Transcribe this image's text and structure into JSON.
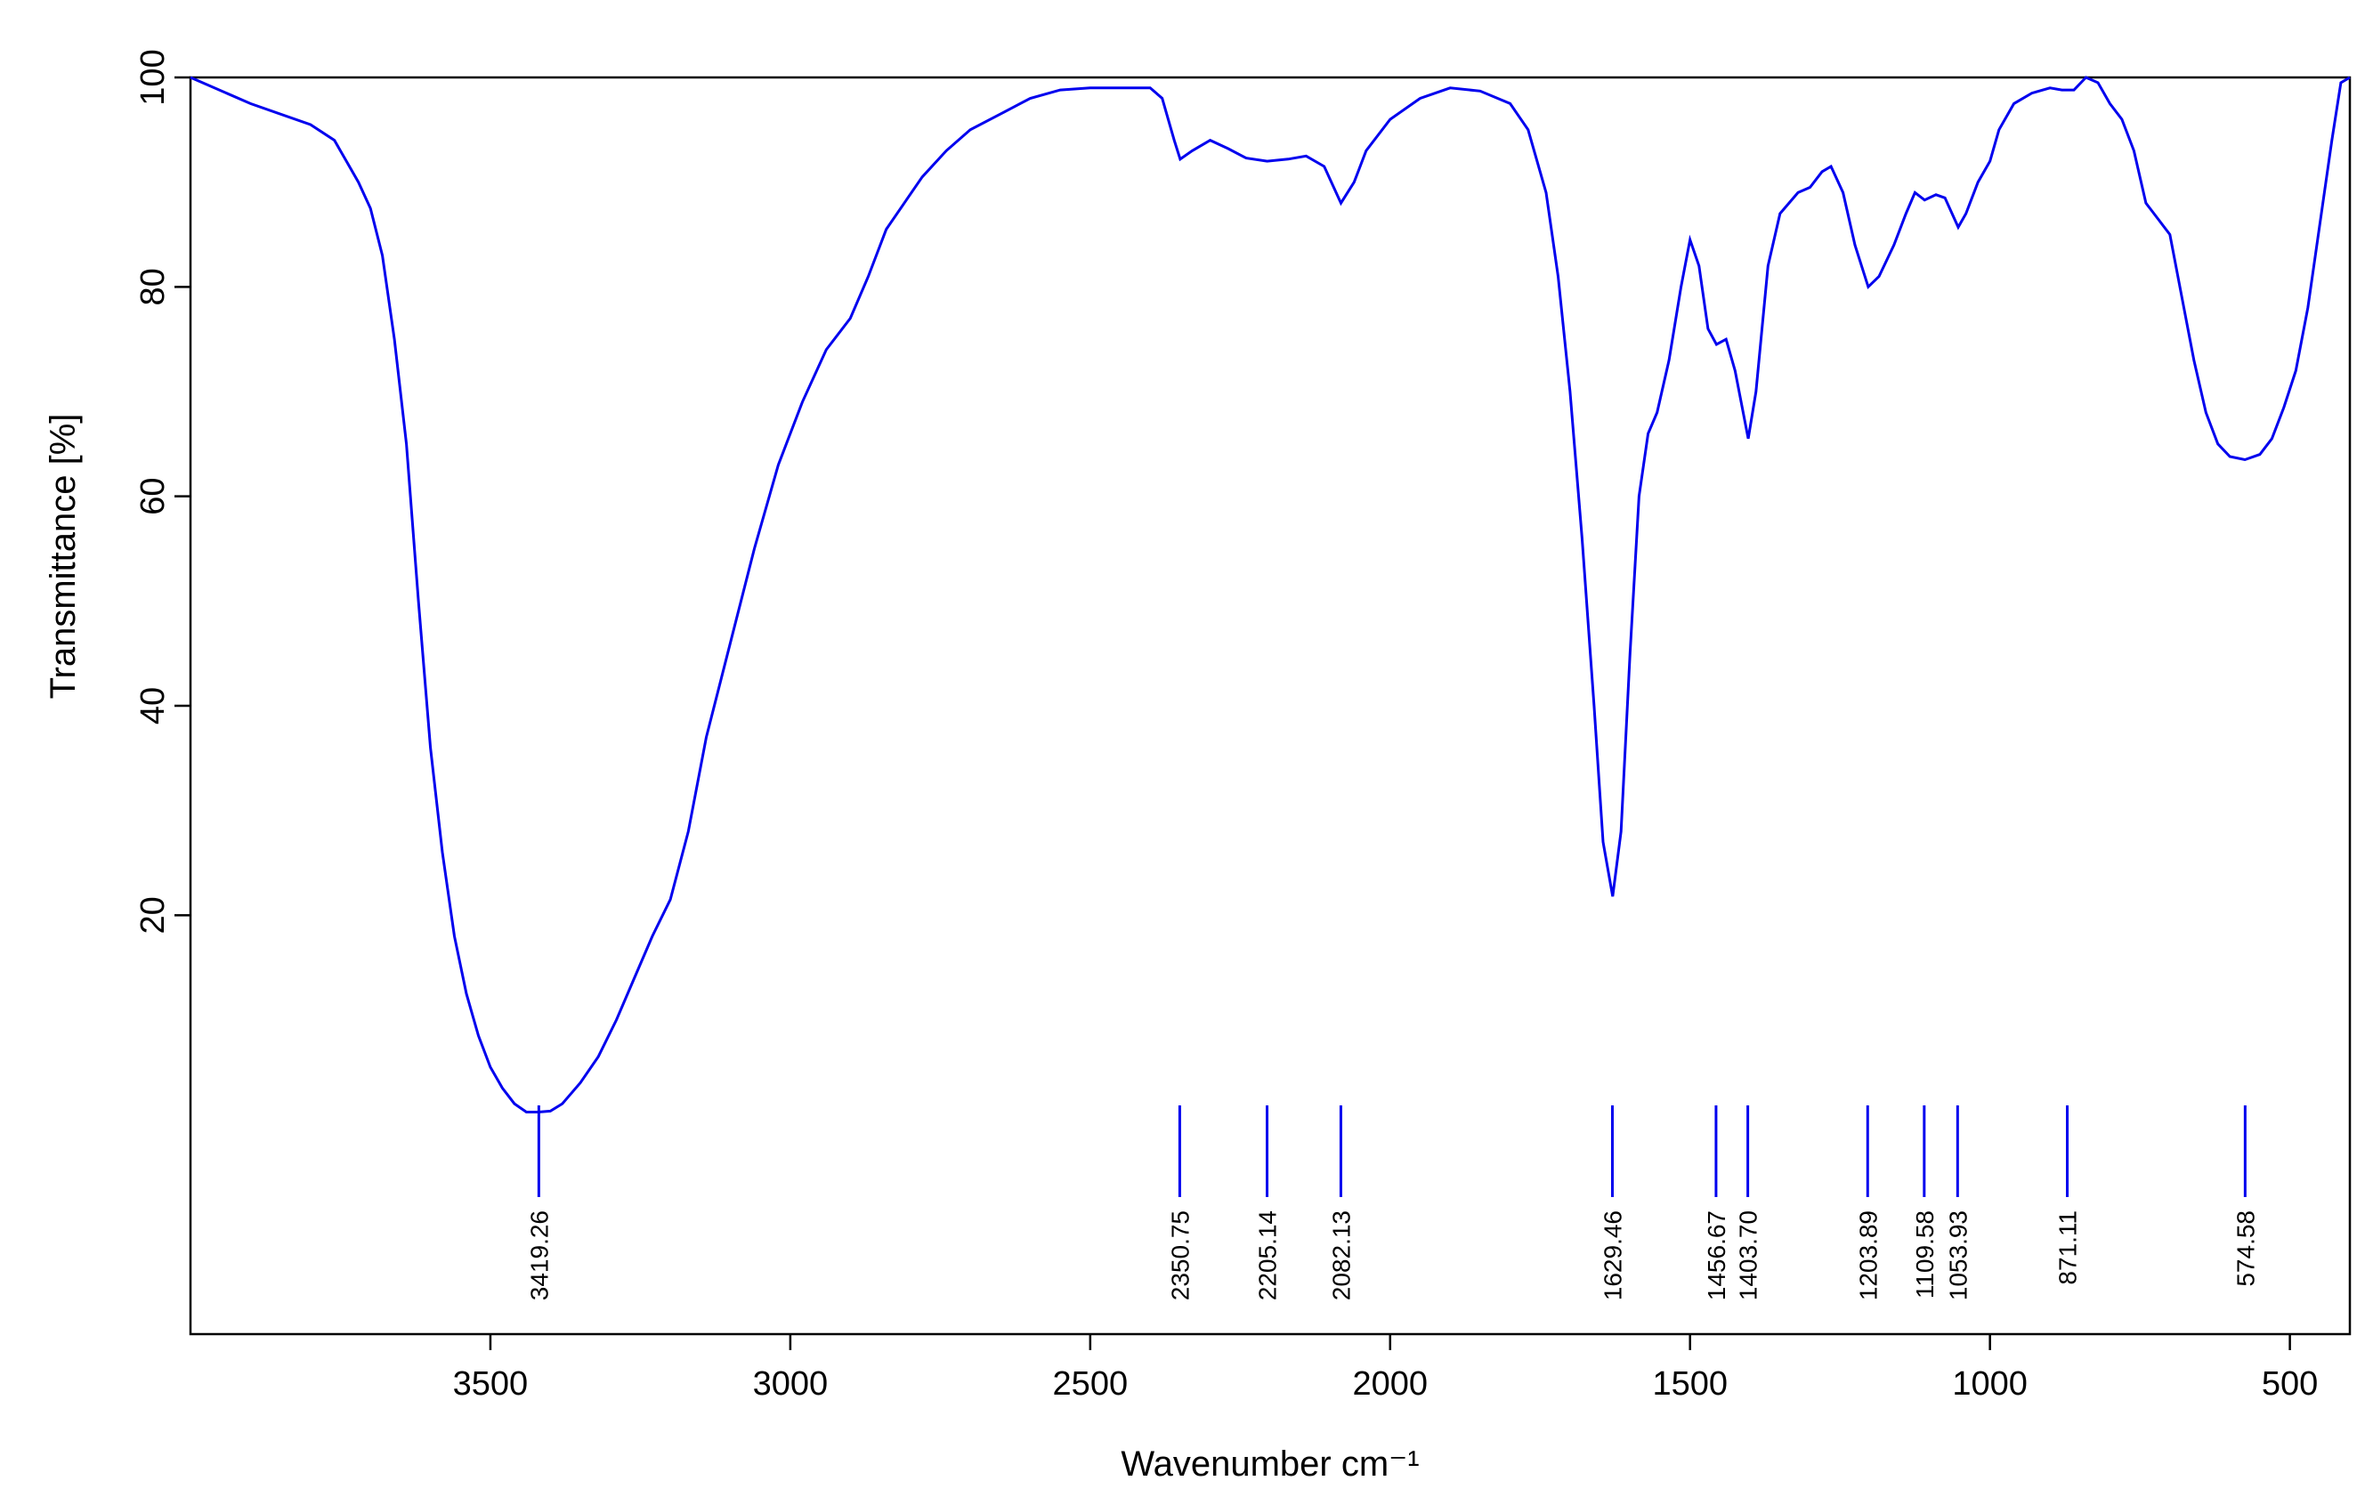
{
  "chart_data": {
    "type": "line",
    "xlabel": "Wavenumber cm⁻¹",
    "ylabel": "Transmittance [%]",
    "xlim": [
      4000,
      400
    ],
    "ylim": [
      -20,
      100
    ],
    "x_ticks": [
      3500,
      3000,
      2500,
      2000,
      1500,
      1000,
      500
    ],
    "y_ticks": [
      20,
      40,
      60,
      80,
      100
    ],
    "grid": false,
    "line_color": "#0000ee",
    "series": [
      {
        "points": [
          [
            4000,
            100
          ],
          [
            3900,
            97.5
          ],
          [
            3800,
            95.5
          ],
          [
            3760,
            94
          ],
          [
            3740,
            92
          ],
          [
            3720,
            90
          ],
          [
            3700,
            87.5
          ],
          [
            3680,
            83
          ],
          [
            3660,
            75
          ],
          [
            3640,
            65
          ],
          [
            3620,
            50
          ],
          [
            3600,
            36
          ],
          [
            3580,
            26
          ],
          [
            3560,
            18
          ],
          [
            3540,
            12.5
          ],
          [
            3520,
            8.5
          ],
          [
            3500,
            5.5
          ],
          [
            3480,
            3.5
          ],
          [
            3460,
            2
          ],
          [
            3440,
            1.2
          ],
          [
            3420,
            1.2
          ],
          [
            3400,
            1.3
          ],
          [
            3380,
            2
          ],
          [
            3350,
            4
          ],
          [
            3320,
            6.5
          ],
          [
            3290,
            10
          ],
          [
            3260,
            14
          ],
          [
            3230,
            18
          ],
          [
            3200,
            21.5
          ],
          [
            3170,
            28
          ],
          [
            3140,
            37
          ],
          [
            3100,
            46
          ],
          [
            3060,
            55
          ],
          [
            3020,
            63
          ],
          [
            2980,
            69
          ],
          [
            2940,
            74
          ],
          [
            2900,
            77
          ],
          [
            2870,
            81
          ],
          [
            2840,
            85.5
          ],
          [
            2810,
            88
          ],
          [
            2780,
            90.5
          ],
          [
            2740,
            93
          ],
          [
            2700,
            95
          ],
          [
            2650,
            96.5
          ],
          [
            2600,
            98
          ],
          [
            2550,
            98.8
          ],
          [
            2500,
            99
          ],
          [
            2450,
            99
          ],
          [
            2400,
            99
          ],
          [
            2380,
            98
          ],
          [
            2360,
            94
          ],
          [
            2350,
            92.2
          ],
          [
            2330,
            93
          ],
          [
            2300,
            94
          ],
          [
            2270,
            93.2
          ],
          [
            2240,
            92.3
          ],
          [
            2205,
            92
          ],
          [
            2170,
            92.2
          ],
          [
            2140,
            92.5
          ],
          [
            2110,
            91.5
          ],
          [
            2090,
            89
          ],
          [
            2082,
            88
          ],
          [
            2060,
            90
          ],
          [
            2040,
            93
          ],
          [
            2000,
            96
          ],
          [
            1950,
            98
          ],
          [
            1900,
            99
          ],
          [
            1850,
            98.7
          ],
          [
            1800,
            97.5
          ],
          [
            1770,
            95
          ],
          [
            1740,
            89
          ],
          [
            1720,
            81
          ],
          [
            1700,
            70
          ],
          [
            1680,
            56
          ],
          [
            1660,
            40
          ],
          [
            1645,
            27
          ],
          [
            1629,
            21.8
          ],
          [
            1615,
            28
          ],
          [
            1600,
            45
          ],
          [
            1585,
            60
          ],
          [
            1570,
            66
          ],
          [
            1555,
            68
          ],
          [
            1535,
            73
          ],
          [
            1515,
            80
          ],
          [
            1500,
            84.5
          ],
          [
            1485,
            82
          ],
          [
            1470,
            76
          ],
          [
            1456,
            74.5
          ],
          [
            1440,
            75
          ],
          [
            1425,
            72
          ],
          [
            1403,
            65.5
          ],
          [
            1390,
            70
          ],
          [
            1370,
            82
          ],
          [
            1350,
            87
          ],
          [
            1320,
            89
          ],
          [
            1300,
            89.5
          ],
          [
            1280,
            91
          ],
          [
            1265,
            91.5
          ],
          [
            1245,
            89
          ],
          [
            1225,
            84
          ],
          [
            1203,
            80
          ],
          [
            1185,
            81
          ],
          [
            1160,
            84
          ],
          [
            1140,
            87
          ],
          [
            1125,
            89
          ],
          [
            1109,
            88.3
          ],
          [
            1090,
            88.8
          ],
          [
            1075,
            88.5
          ],
          [
            1053,
            85.7
          ],
          [
            1040,
            87
          ],
          [
            1020,
            90
          ],
          [
            1000,
            92
          ],
          [
            985,
            95
          ],
          [
            960,
            97.5
          ],
          [
            930,
            98.5
          ],
          [
            900,
            99
          ],
          [
            880,
            98.8
          ],
          [
            860,
            98.8
          ],
          [
            840,
            100
          ],
          [
            820,
            99.5
          ],
          [
            800,
            97.5
          ],
          [
            780,
            96
          ],
          [
            760,
            93
          ],
          [
            740,
            88
          ],
          [
            720,
            86.5
          ],
          [
            700,
            85
          ],
          [
            680,
            79
          ],
          [
            660,
            73
          ],
          [
            640,
            68
          ],
          [
            620,
            65
          ],
          [
            600,
            63.8
          ],
          [
            575,
            63.5
          ],
          [
            550,
            64
          ],
          [
            530,
            65.5
          ],
          [
            510,
            68.5
          ],
          [
            490,
            72
          ],
          [
            470,
            78
          ],
          [
            450,
            86
          ],
          [
            430,
            94
          ],
          [
            415,
            99.5
          ],
          [
            400,
            100
          ]
        ]
      }
    ],
    "peaks": [
      3419.26,
      2350.75,
      2205.14,
      2082.13,
      1629.46,
      1456.67,
      1403.7,
      1203.89,
      1109.58,
      1053.93,
      871.11,
      574.58
    ],
    "peak_labels": [
      "3419.26",
      "2350.75",
      "2205.14",
      "2082.13",
      "1629.46",
      "1456.67",
      "1403.70",
      "1203.89",
      "1109.58",
      "1053.93",
      "871.11",
      "574.58"
    ]
  }
}
